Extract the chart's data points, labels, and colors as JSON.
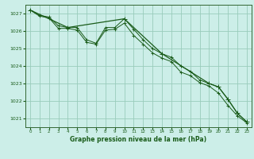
{
  "background_color": "#cceee8",
  "grid_color": "#99ccbb",
  "line_color": "#1a5c1a",
  "spine_color": "#336633",
  "title": "Graphe pression niveau de la mer (hPa)",
  "xlim": [
    -0.5,
    23.5
  ],
  "ylim": [
    1020.5,
    1027.5
  ],
  "yticks": [
    1021,
    1022,
    1023,
    1024,
    1025,
    1026,
    1027
  ],
  "xticks": [
    0,
    1,
    2,
    3,
    4,
    5,
    6,
    7,
    8,
    9,
    10,
    11,
    12,
    13,
    14,
    15,
    16,
    17,
    18,
    19,
    20,
    21,
    22,
    23
  ],
  "series1_x": [
    0,
    1,
    2,
    3,
    4,
    5,
    6,
    7,
    8,
    9,
    10,
    11,
    12,
    13,
    14,
    15,
    16,
    17,
    18,
    19,
    20,
    21,
    22,
    23
  ],
  "series1_y": [
    1027.2,
    1026.9,
    1026.8,
    1026.3,
    1026.2,
    1026.2,
    1025.5,
    1025.3,
    1026.2,
    1026.2,
    1026.7,
    1026.1,
    1025.5,
    1025.0,
    1024.7,
    1024.5,
    1024.0,
    1023.7,
    1023.2,
    1023.0,
    1022.8,
    1022.1,
    1021.3,
    1020.8
  ],
  "series2_x": [
    0,
    1,
    2,
    3,
    4,
    5,
    6,
    7,
    8,
    9,
    10,
    11,
    12,
    13,
    14,
    15,
    16,
    17,
    18,
    19,
    20,
    21,
    22,
    23
  ],
  "series2_y": [
    1027.2,
    1026.85,
    1026.75,
    1026.15,
    1026.15,
    1026.05,
    1025.35,
    1025.25,
    1026.05,
    1026.1,
    1026.45,
    1025.75,
    1025.25,
    1024.75,
    1024.45,
    1024.25,
    1023.65,
    1023.45,
    1023.05,
    1022.85,
    1022.45,
    1021.75,
    1021.15,
    1020.75
  ],
  "series3_x": [
    0,
    4,
    10,
    14,
    19,
    20,
    21,
    22,
    23
  ],
  "series3_y": [
    1027.2,
    1026.2,
    1026.7,
    1024.7,
    1023.0,
    1022.8,
    1022.1,
    1021.3,
    1020.8
  ]
}
